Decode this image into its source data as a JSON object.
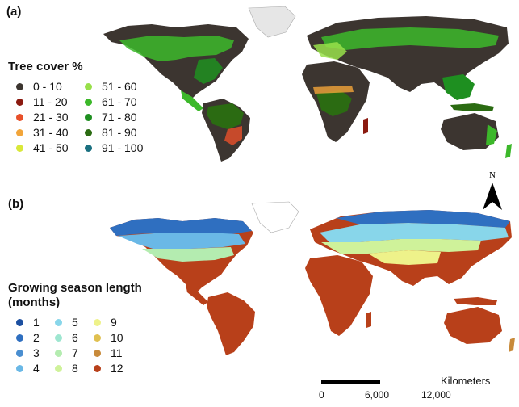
{
  "panel_a": {
    "label": "(a)",
    "legend_title": "Tree cover %",
    "classes": [
      {
        "label": "0 - 10",
        "color": "#3c3530"
      },
      {
        "label": "11 - 20",
        "color": "#8b1a10"
      },
      {
        "label": "21 - 30",
        "color": "#e8502a"
      },
      {
        "label": "31 - 40",
        "color": "#f2a53a"
      },
      {
        "label": "41 - 50",
        "color": "#d9e83a"
      },
      {
        "label": "51 - 60",
        "color": "#98e04a"
      },
      {
        "label": "61 - 70",
        "color": "#3cb82a"
      },
      {
        "label": "71 - 80",
        "color": "#1e8f20"
      },
      {
        "label": "81 - 90",
        "color": "#2b6b12"
      },
      {
        "label": "91 - 100",
        "color": "#1a7080"
      }
    ]
  },
  "panel_b": {
    "label": "(b)",
    "legend_title_1": "Growing season length",
    "legend_title_2": "(months)",
    "classes": [
      {
        "label": "1",
        "color": "#1c4fa0"
      },
      {
        "label": "2",
        "color": "#2f6fc0"
      },
      {
        "label": "3",
        "color": "#4a8ed0"
      },
      {
        "label": "4",
        "color": "#6ab8e6"
      },
      {
        "label": "5",
        "color": "#88d6ea"
      },
      {
        "label": "6",
        "color": "#9ee6d0"
      },
      {
        "label": "7",
        "color": "#b4ecb0"
      },
      {
        "label": "8",
        "color": "#cff29a"
      },
      {
        "label": "9",
        "color": "#eef28a"
      },
      {
        "label": "10",
        "color": "#e0c050"
      },
      {
        "label": "11",
        "color": "#c88a3a"
      },
      {
        "label": "12",
        "color": "#b8401a"
      }
    ]
  },
  "north_arrow": {
    "label": "N"
  },
  "scale_bar": {
    "ticks": [
      "0",
      "6,000",
      "12,000"
    ],
    "unit": "Kilometers"
  }
}
